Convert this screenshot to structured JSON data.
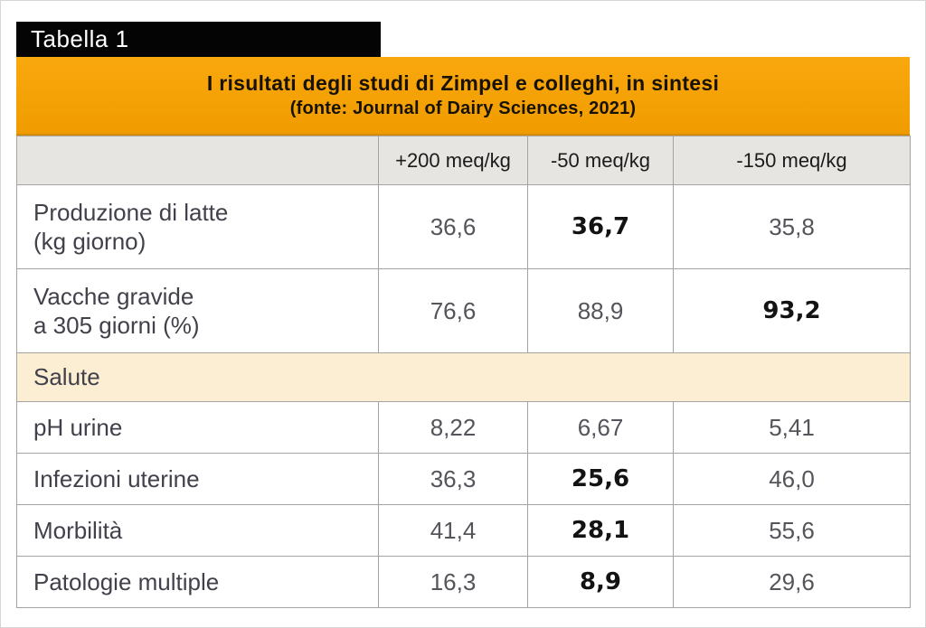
{
  "tab_label": "Tabella 1",
  "banner": {
    "title": "I risultati degli studi di Zimpel e colleghi, in sintesi",
    "subtitle": "(fonte: Journal of Dairy Sciences, 2021)"
  },
  "chart_data": {
    "type": "table",
    "title": "I risultati degli studi di Zimpel e colleghi, in sintesi",
    "source": "(fonte: Journal of Dairy Sciences, 2021)",
    "columns": [
      "",
      "+200 meq/kg",
      "-50 meq/kg",
      "-150 meq/kg"
    ],
    "sections": [
      {
        "name": "",
        "rows": [
          {
            "label_lines": [
              "Produzione di latte",
              "(kg giorno)"
            ],
            "values": [
              "36,6",
              "36,7",
              "35,8"
            ],
            "bold": [
              false,
              true,
              false
            ]
          },
          {
            "label_lines": [
              "Vacche gravide",
              "a 305 giorni (%)"
            ],
            "values": [
              "76,6",
              "88,9",
              "93,2"
            ],
            "bold": [
              false,
              false,
              true
            ]
          }
        ]
      },
      {
        "name": "Salute",
        "rows": [
          {
            "label_lines": [
              "pH urine"
            ],
            "values": [
              "8,22",
              "6,67",
              "5,41"
            ],
            "bold": [
              false,
              false,
              false
            ]
          },
          {
            "label_lines": [
              "Infezioni uterine"
            ],
            "values": [
              "36,3",
              "25,6",
              "46,0"
            ],
            "bold": [
              false,
              true,
              false
            ]
          },
          {
            "label_lines": [
              "Morbilità"
            ],
            "values": [
              "41,4",
              "28,1",
              "55,6"
            ],
            "bold": [
              false,
              true,
              false
            ]
          },
          {
            "label_lines": [
              "Patologie multiple"
            ],
            "values": [
              "16,3",
              "8,9",
              "29,6"
            ],
            "bold": [
              false,
              true,
              false
            ]
          }
        ]
      }
    ]
  },
  "colors": {
    "banner_top": "#F9A80D",
    "banner_bottom": "#F09C00",
    "tab_bg": "#040404",
    "tab_text": "#FFFFFF",
    "header_bg": "#E7E5E2",
    "section_bg": "#FBEED3",
    "border": "#A5A3A0",
    "label_text": "#41414B",
    "value_text": "#54545B",
    "bold_text": "#131313"
  }
}
